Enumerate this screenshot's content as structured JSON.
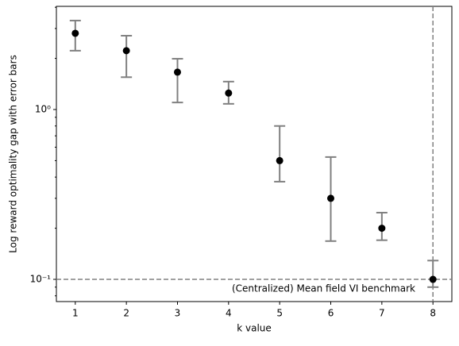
{
  "chart_data": {
    "type": "errorbar",
    "xlabel": "k value",
    "ylabel": "Log reward optimality gap with error bars",
    "x": [
      1,
      2,
      3,
      4,
      5,
      6,
      7,
      8
    ],
    "values": [
      2.81,
      2.22,
      1.66,
      1.25,
      0.5,
      0.3,
      0.2,
      0.1
    ],
    "lower": [
      2.22,
      1.55,
      1.1,
      1.08,
      0.376,
      0.168,
      0.17,
      0.09
    ],
    "upper": [
      3.34,
      2.72,
      1.99,
      1.46,
      0.8,
      0.525,
      0.247,
      0.129
    ],
    "color": "#000000",
    "error_color": "#808080",
    "xlim": [
      0.63,
      8.37
    ],
    "xticks": [
      1,
      2,
      3,
      4,
      5,
      6,
      7,
      8
    ],
    "ylog": true,
    "ylim": [
      0.074,
      4.05
    ],
    "yticks": [
      {
        "value": 0.1,
        "label": "10⁻¹"
      },
      {
        "value": 1,
        "label": "10⁰"
      }
    ],
    "y_minor_ticks": [
      0.08,
      0.09,
      0.2,
      0.3,
      0.4,
      0.5,
      0.6,
      0.7,
      0.8,
      0.9,
      2,
      3,
      4
    ],
    "hline": 0.1,
    "vline": 8,
    "line_color": "#808080",
    "annotation": "(Centralized) Mean field VI benchmark"
  }
}
